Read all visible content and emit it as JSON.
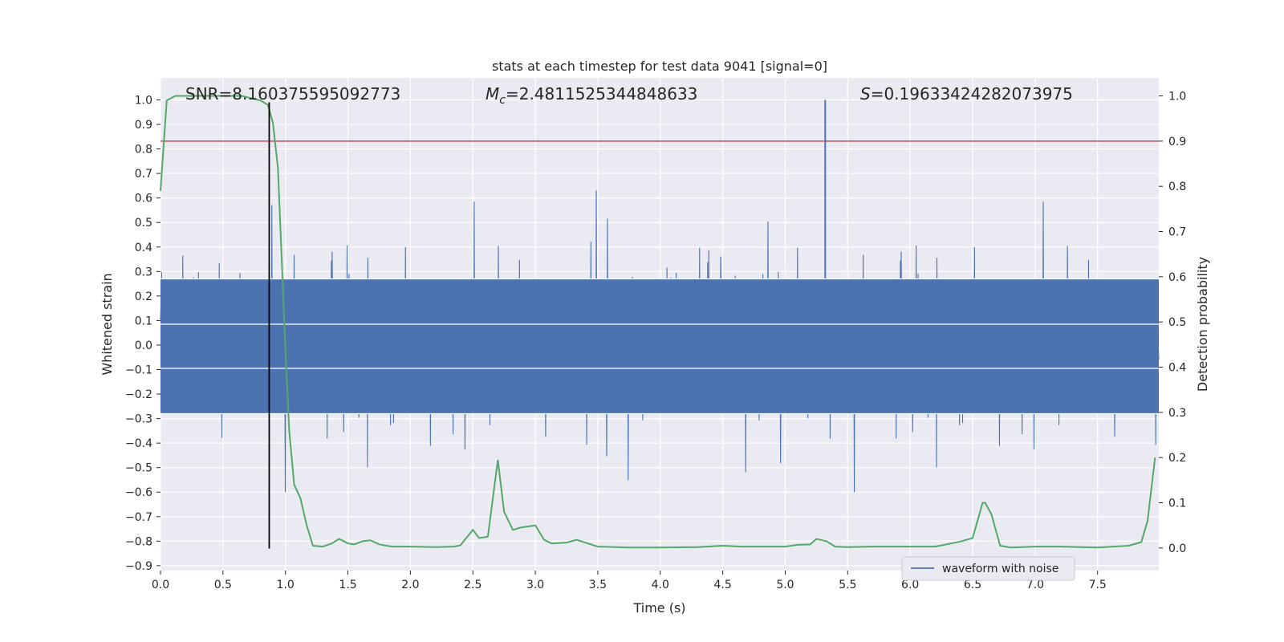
{
  "chart_data": {
    "type": "line",
    "title": "stats at each timestep for test data 9041 [signal=0]",
    "xlabel": "Time (s)",
    "ylabel": "Whitened strain",
    "ylabel_right": "Detection probability",
    "xlim": [
      0.0,
      7.99
    ],
    "ylim": [
      -0.92,
      1.09
    ],
    "ylim_right": [
      -0.05,
      1.04
    ],
    "grid": true,
    "x_ticks": [
      "0.0",
      "0.5",
      "1.0",
      "1.5",
      "2.0",
      "2.5",
      "3.0",
      "3.5",
      "4.0",
      "4.5",
      "5.0",
      "5.5",
      "6.0",
      "6.5",
      "7.0",
      "7.5"
    ],
    "y_ticks": [
      "1.0",
      "0.9",
      "0.8",
      "0.7",
      "0.6",
      "0.5",
      "0.4",
      "0.3",
      "0.2",
      "0.1",
      "0.0",
      "−0.1",
      "−0.2",
      "−0.3",
      "−0.4",
      "−0.5",
      "−0.6",
      "−0.7",
      "−0.8",
      "−0.9"
    ],
    "y_right_ticks": [
      "1.0",
      "0.9",
      "0.8",
      "0.7",
      "0.6",
      "0.5",
      "0.4",
      "0.3",
      "0.2",
      "0.1",
      "0.0"
    ],
    "annotations": {
      "snr": "SNR=8.160375595092773",
      "mc_symbol": "M",
      "mc_sub": "c",
      "mc_value": "=2.4811525344848633",
      "s_symbol": "S",
      "s_value": "=0.19633424282073975"
    },
    "legend": {
      "label": "waveform with noise",
      "position": "lower-right"
    },
    "colors": {
      "waveform": "#4c72b0",
      "probability": "#55a868",
      "threshold": "#c44e52",
      "marker": "#000000",
      "background": "#eaeaf2",
      "grid": "#ffffff"
    },
    "series": [
      {
        "name": "waveform with noise",
        "axis": "left",
        "x_range": [
          0.0,
          7.99
        ],
        "band_envelope": 0.45,
        "peak_max": 1.0,
        "peak_min": -0.83
      }
    ],
    "probability_line": {
      "axis": "right",
      "x": [
        0.0,
        0.05,
        0.12,
        0.3,
        0.5,
        0.65,
        0.8,
        0.86,
        0.9,
        0.94,
        0.97,
        1.0,
        1.03,
        1.07,
        1.12,
        1.17,
        1.22,
        1.3,
        1.37,
        1.43,
        1.5,
        1.55,
        1.62,
        1.68,
        1.75,
        1.85,
        2.0,
        2.2,
        2.35,
        2.4,
        2.45,
        2.5,
        2.55,
        2.62,
        2.7,
        2.75,
        2.82,
        2.88,
        3.0,
        3.07,
        3.13,
        3.25,
        3.33,
        3.5,
        3.75,
        4.0,
        4.3,
        4.5,
        4.65,
        5.0,
        5.1,
        5.2,
        5.25,
        5.33,
        5.4,
        5.5,
        5.7,
        6.0,
        6.2,
        6.4,
        6.5,
        6.58,
        6.6,
        6.65,
        6.72,
        6.8,
        7.0,
        7.2,
        7.5,
        7.75,
        7.85,
        7.9,
        7.96
      ],
      "y": [
        0.79,
        0.99,
        1.0,
        1.0,
        1.0,
        1.0,
        0.99,
        0.98,
        0.94,
        0.84,
        0.64,
        0.44,
        0.26,
        0.14,
        0.11,
        0.05,
        0.005,
        0.003,
        0.01,
        0.02,
        0.01,
        0.008,
        0.015,
        0.017,
        0.008,
        0.003,
        0.003,
        0.002,
        0.003,
        0.006,
        0.023,
        0.04,
        0.022,
        0.025,
        0.195,
        0.08,
        0.04,
        0.045,
        0.05,
        0.018,
        0.01,
        0.012,
        0.018,
        0.003,
        0.001,
        0.001,
        0.002,
        0.005,
        0.003,
        0.003,
        0.007,
        0.008,
        0.02,
        0.015,
        0.003,
        0.002,
        0.003,
        0.003,
        0.003,
        0.014,
        0.022,
        0.1,
        0.1,
        0.075,
        0.005,
        0.001,
        0.003,
        0.003,
        0.001,
        0.005,
        0.013,
        0.06,
        0.2
      ]
    },
    "threshold_right": 0.9,
    "marker_x": 0.87,
    "marker_y_range": [
      -0.83,
      0.99
    ]
  }
}
